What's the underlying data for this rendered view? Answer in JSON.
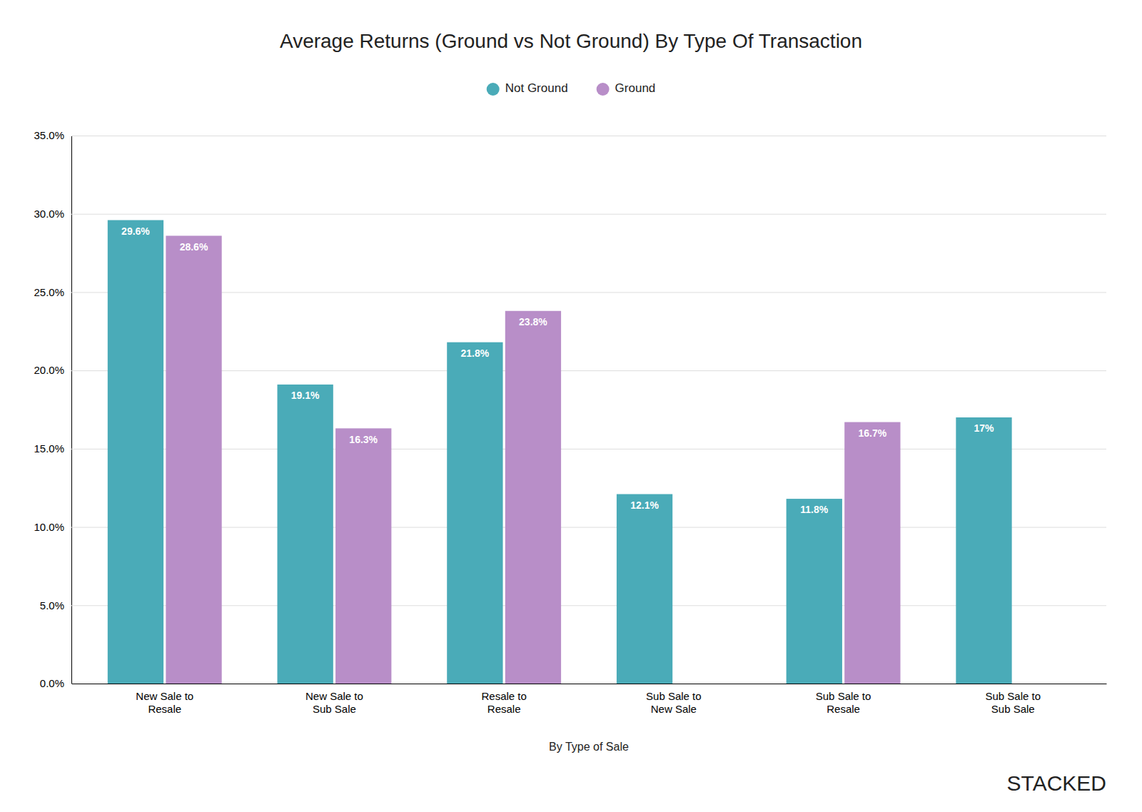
{
  "chart_data": {
    "type": "bar",
    "title": "Average Returns (Ground vs Not Ground) By Type Of Transaction",
    "x_label": "By Type of Sale",
    "categories": [
      "New Sale to\nResale",
      "New Sale to\nSub Sale",
      "Resale to\nResale",
      "Sub Sale to\nNew Sale",
      "Sub Sale to\nResale",
      "Sub Sale to\nSub Sale"
    ],
    "series": [
      {
        "name": "Not Ground",
        "color": "#4AABB8",
        "values": [
          0.296,
          0.191,
          0.218,
          0.121,
          0.118,
          0.17
        ],
        "value_labels": [
          "29.6%",
          "19.1%",
          "21.8%",
          "12.1%",
          "11.8%",
          "17%"
        ]
      },
      {
        "name": "Ground",
        "color": "#B88EC8",
        "values": [
          0.286,
          0.163,
          0.238,
          null,
          0.167,
          null
        ],
        "value_labels": [
          "28.6%",
          "16.3%",
          "23.8%",
          null,
          "16.7%",
          null
        ]
      }
    ],
    "ylim": [
      0,
      0.35
    ],
    "yticks": [
      {
        "value": 0.0,
        "label": "0.0%"
      },
      {
        "value": 0.05,
        "label": "5.0%"
      },
      {
        "value": 0.1,
        "label": "10.0%"
      },
      {
        "value": 0.15,
        "label": "15.0%"
      },
      {
        "value": 0.2,
        "label": "20.0%"
      },
      {
        "value": 0.25,
        "label": "25.0%"
      },
      {
        "value": 0.3,
        "label": "30.0%"
      },
      {
        "value": 0.35,
        "label": "35.0%"
      }
    ],
    "grid": true,
    "legend": "top",
    "data_labels": true,
    "annotations": [
      "STACKED"
    ]
  }
}
